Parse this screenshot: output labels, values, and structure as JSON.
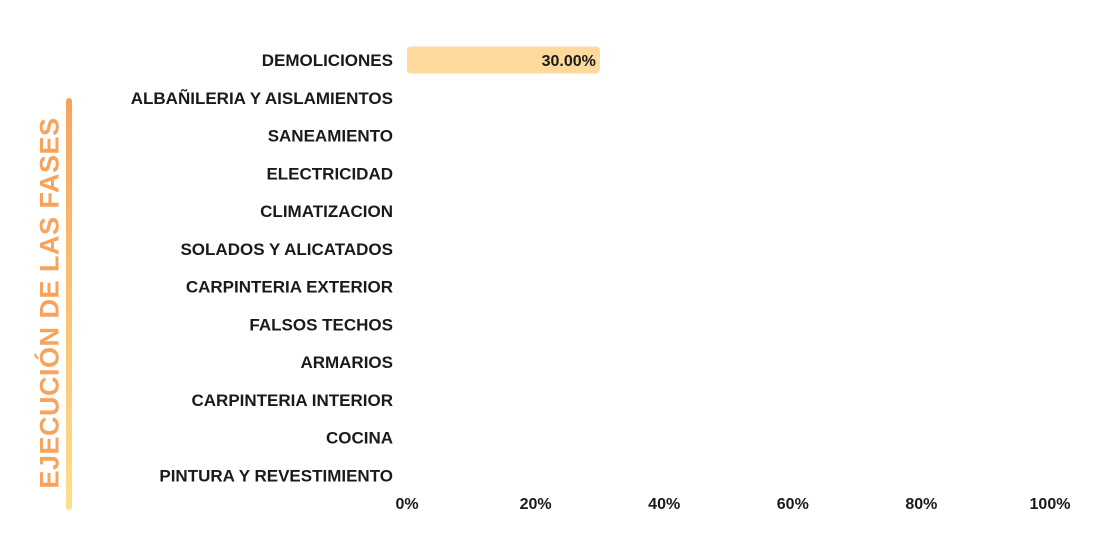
{
  "chart_data": {
    "type": "bar",
    "orientation": "horizontal",
    "ylabel": "EJECUCIÓN DE LAS FASES",
    "categories": [
      "DEMOLICIONES",
      "ALBAÑILERIA Y AISLAMIENTOS",
      "SANEAMIENTO",
      "ELECTRICIDAD",
      "CLIMATIZACION",
      "SOLADOS Y ALICATADOS",
      "CARPINTERIA EXTERIOR",
      "FALSOS TECHOS",
      "ARMARIOS",
      "CARPINTERIA INTERIOR",
      "COCINA",
      "PINTURA Y REVESTIMIENTO"
    ],
    "values": [
      30,
      0,
      0,
      0,
      0,
      0,
      0,
      0,
      0,
      0,
      0,
      0
    ],
    "data_labels": [
      "30.00%",
      "",
      "",
      "",
      "",
      "",
      "",
      "",
      "",
      "",
      "",
      ""
    ],
    "xlim": [
      0,
      100
    ],
    "x_ticks": [
      "0%",
      "20%",
      "40%",
      "60%",
      "80%",
      "100%"
    ],
    "grid": false,
    "colors": {
      "bar": "#fdd99b",
      "ylabel_text": "#f7a35c",
      "ylabel_bar_top": "#f7a35c",
      "ylabel_bar_bottom": "#fde08a"
    }
  }
}
